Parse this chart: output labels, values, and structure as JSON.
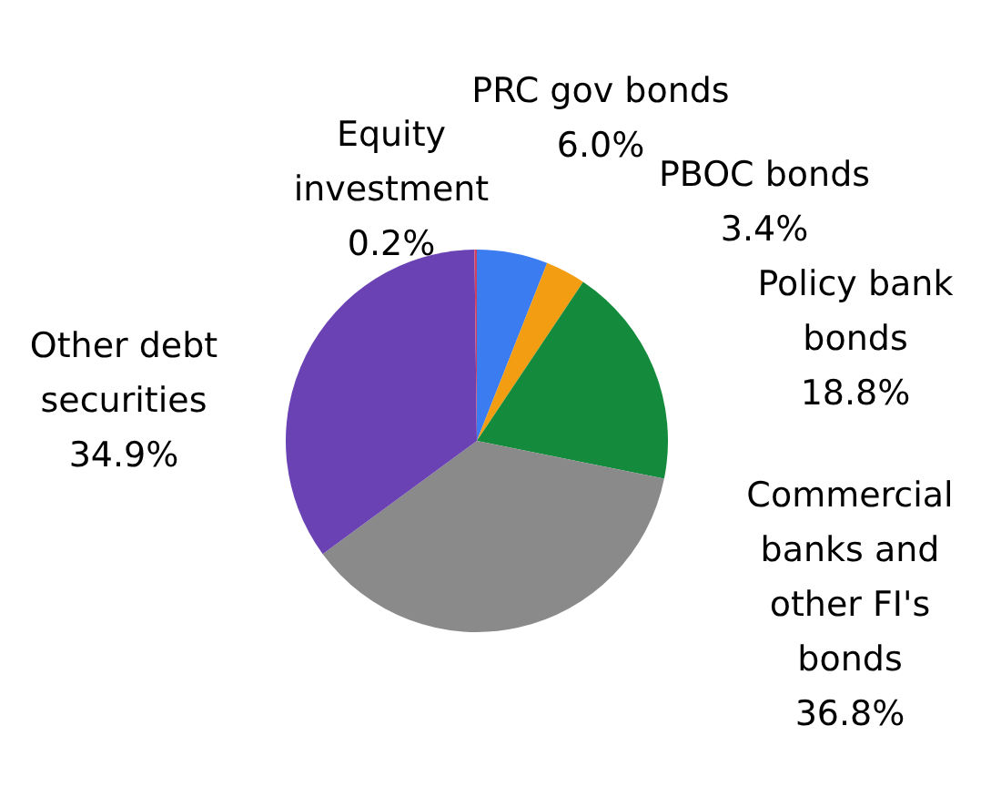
{
  "chart_data": {
    "type": "pie",
    "categories": [
      "PRC gov bonds",
      "PBOC bonds",
      "Policy bank bonds",
      "Commercial banks and other FI's bonds",
      "Other debt securities",
      "Equity investment"
    ],
    "values": [
      6.0,
      3.4,
      18.8,
      36.8,
      34.9,
      0.2
    ],
    "value_labels": [
      "6.0%",
      "3.4%",
      "18.8%",
      "36.8%",
      "34.9%",
      "0.2%"
    ],
    "colors": [
      "#3b7cf0",
      "#f29d12",
      "#148a3c",
      "#8a8a8a",
      "#6a42b4",
      "#d04060"
    ]
  }
}
